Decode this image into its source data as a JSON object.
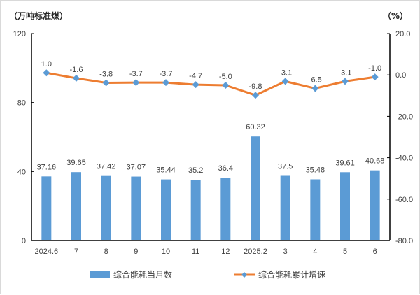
{
  "chart_data": {
    "type": "bar+line",
    "left_unit": "（万吨标准煤）",
    "right_unit": "（%）",
    "categories": [
      "2024.6",
      "7",
      "8",
      "9",
      "10",
      "11",
      "12",
      "2025.2",
      "3",
      "4",
      "5",
      "6"
    ],
    "y_left": {
      "min": 0,
      "max": 120,
      "ticks": [
        "0",
        "40",
        "80",
        "120"
      ]
    },
    "y_right": {
      "min": -80,
      "max": 20,
      "ticks": [
        "-80.0",
        "-60.0",
        "-40.0",
        "-20.0",
        "0.0",
        "20.0"
      ]
    },
    "grid": false,
    "legend_position": "bottom",
    "series": [
      {
        "name": "综合能耗当月数",
        "type": "bar",
        "axis": "left",
        "color": "#5b9bd5",
        "values": [
          37.16,
          39.65,
          37.42,
          37.07,
          35.44,
          35.2,
          36.4,
          60.32,
          37.5,
          35.48,
          39.61,
          40.68
        ],
        "labels": [
          "37.16",
          "39.65",
          "37.42",
          "37.07",
          "35.44",
          "35.2",
          "36.4",
          "60.32",
          "37.5",
          "35.48",
          "39.61",
          "40.68"
        ]
      },
      {
        "name": "综合能耗累计增速",
        "type": "line",
        "axis": "right",
        "color": "#ed7d31",
        "marker_color": "#5b9bd5",
        "marker": "diamond",
        "values": [
          1.0,
          -1.6,
          -3.8,
          -3.7,
          -3.7,
          -4.7,
          -5.0,
          -9.8,
          -3.1,
          -6.5,
          -3.1,
          -1.0
        ],
        "labels": [
          "1.0",
          "-1.6",
          "-3.8",
          "-3.7",
          "-3.7",
          "-4.7",
          "-5.0",
          "-9.8",
          "-3.1",
          "-6.5",
          "-3.1",
          "-1.0"
        ]
      }
    ]
  }
}
